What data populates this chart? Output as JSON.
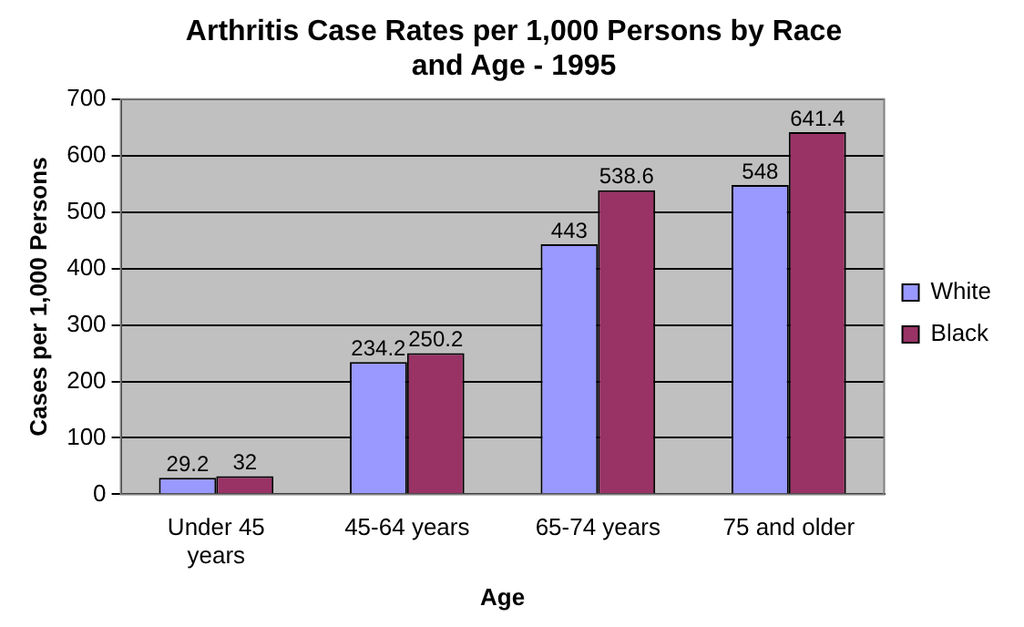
{
  "chart_data": {
    "type": "bar",
    "title": "Arthritis Case Rates per 1,000 Persons by Race and Age - 1995",
    "xlabel": "Age",
    "ylabel": "Cases per 1,000 Persons",
    "categories": [
      "Under 45 years",
      "45-64 years",
      "65-74 years",
      "75 and older"
    ],
    "series": [
      {
        "name": "White",
        "color": "#9999ff",
        "values": [
          29.2,
          234.2,
          443,
          548
        ]
      },
      {
        "name": "Black",
        "color": "#993366",
        "values": [
          32,
          250.2,
          538.6,
          641.4
        ]
      }
    ],
    "ylim": [
      0,
      700
    ],
    "yticks": [
      0,
      100,
      200,
      300,
      400,
      500,
      600,
      700
    ],
    "grid": "y",
    "legend": "right",
    "data_labels": true
  }
}
